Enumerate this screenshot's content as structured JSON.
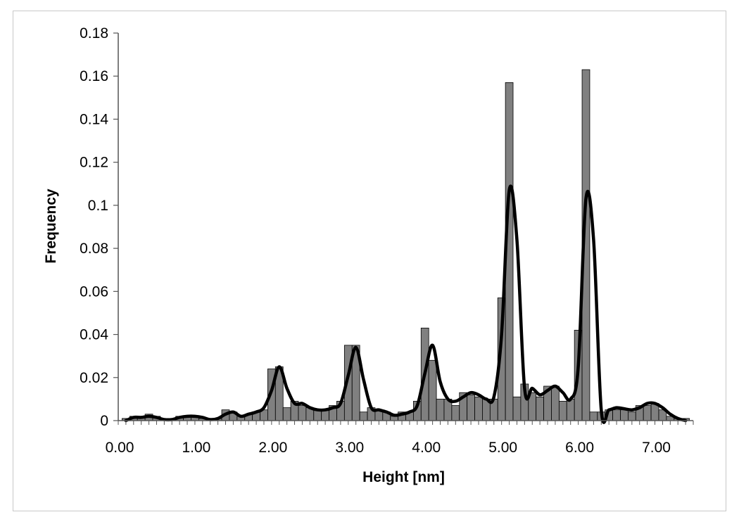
{
  "chart_data": {
    "type": "bar",
    "title": "",
    "xlabel": "Height [nm]",
    "ylabel": "Frequency",
    "xlim": [
      0,
      7.5
    ],
    "ylim": [
      0,
      0.18
    ],
    "grid": false,
    "legend": "none",
    "x_ticks": [
      "0.00",
      "1.00",
      "2.00",
      "3.00",
      "4.00",
      "5.00",
      "6.00",
      "7.00"
    ],
    "x_tick_values": [
      0,
      1,
      2,
      3,
      4,
      5,
      6,
      7
    ],
    "y_ticks": [
      "0",
      "0.02",
      "0.04",
      "0.06",
      "0.08",
      "0.1",
      "0.12",
      "0.14",
      "0.16",
      "0.18"
    ],
    "y_tick_values": [
      0,
      0.02,
      0.04,
      0.06,
      0.08,
      0.1,
      0.12,
      0.14,
      0.16,
      0.18
    ],
    "bin_width": 0.1,
    "bar_color": "#808080",
    "line_color": "#000000",
    "histogram": {
      "x": [
        0.1,
        0.2,
        0.3,
        0.4,
        0.5,
        0.6,
        0.7,
        0.8,
        0.9,
        1.0,
        1.1,
        1.2,
        1.3,
        1.4,
        1.5,
        1.6,
        1.7,
        1.8,
        1.9,
        2.0,
        2.1,
        2.2,
        2.3,
        2.4,
        2.5,
        2.6,
        2.7,
        2.8,
        2.9,
        3.0,
        3.1,
        3.2,
        3.3,
        3.4,
        3.5,
        3.6,
        3.7,
        3.8,
        3.9,
        4.0,
        4.1,
        4.2,
        4.3,
        4.4,
        4.5,
        4.6,
        4.7,
        4.8,
        4.9,
        5.0,
        5.1,
        5.2,
        5.3,
        5.4,
        5.5,
        5.6,
        5.7,
        5.8,
        5.9,
        6.0,
        6.1,
        6.2,
        6.3,
        6.4,
        6.5,
        6.6,
        6.7,
        6.8,
        6.9,
        7.0,
        7.1,
        7.2,
        7.3,
        7.4
      ],
      "values": [
        0.001,
        0.002,
        0.002,
        0.003,
        0.002,
        0.001,
        0.001,
        0.002,
        0.002,
        0.002,
        0.001,
        0.001,
        0.001,
        0.005,
        0.004,
        0.002,
        0.003,
        0.004,
        0.005,
        0.024,
        0.025,
        0.006,
        0.009,
        0.007,
        0.006,
        0.005,
        0.005,
        0.007,
        0.009,
        0.035,
        0.035,
        0.004,
        0.006,
        0.005,
        0.004,
        0.002,
        0.004,
        0.004,
        0.009,
        0.043,
        0.028,
        0.01,
        0.01,
        0.007,
        0.013,
        0.012,
        0.011,
        0.01,
        0.01,
        0.057,
        0.157,
        0.011,
        0.017,
        0.013,
        0.011,
        0.016,
        0.016,
        0.009,
        0.01,
        0.042,
        0.163,
        0.004,
        0.004,
        0.005,
        0.005,
        0.005,
        0.004,
        0.007,
        0.007,
        0.008,
        0.005,
        0.002,
        0.001,
        0.001
      ]
    },
    "curve": {
      "x": [
        0.1,
        0.2,
        0.3,
        0.4,
        0.5,
        0.6,
        0.7,
        0.8,
        0.9,
        1.0,
        1.1,
        1.2,
        1.3,
        1.4,
        1.5,
        1.6,
        1.7,
        1.8,
        1.9,
        2.0,
        2.1,
        2.2,
        2.3,
        2.4,
        2.5,
        2.6,
        2.7,
        2.8,
        2.9,
        3.0,
        3.1,
        3.2,
        3.3,
        3.4,
        3.5,
        3.6,
        3.7,
        3.8,
        3.9,
        4.0,
        4.1,
        4.2,
        4.3,
        4.4,
        4.5,
        4.6,
        4.7,
        4.8,
        4.9,
        5.0,
        5.1,
        5.2,
        5.3,
        5.4,
        5.5,
        5.6,
        5.7,
        5.8,
        5.9,
        6.0,
        6.1,
        6.2,
        6.3,
        6.4,
        6.5,
        6.6,
        6.7,
        6.8,
        6.9,
        7.0,
        7.1,
        7.2,
        7.3,
        7.4
      ],
      "values": [
        0.0,
        0.0015,
        0.0015,
        0.002,
        0.0015,
        0.0005,
        0.0005,
        0.0015,
        0.002,
        0.002,
        0.0015,
        0.0005,
        0.001,
        0.003,
        0.004,
        0.002,
        0.003,
        0.004,
        0.006,
        0.014,
        0.025,
        0.015,
        0.008,
        0.008,
        0.006,
        0.005,
        0.005,
        0.006,
        0.008,
        0.021,
        0.034,
        0.019,
        0.006,
        0.005,
        0.004,
        0.0025,
        0.003,
        0.004,
        0.007,
        0.022,
        0.035,
        0.018,
        0.01,
        0.009,
        0.011,
        0.013,
        0.012,
        0.01,
        0.011,
        0.04,
        0.107,
        0.084,
        0.015,
        0.015,
        0.012,
        0.014,
        0.016,
        0.013,
        0.01,
        0.025,
        0.103,
        0.084,
        0.005,
        0.005,
        0.006,
        0.0055,
        0.005,
        0.006,
        0.008,
        0.008,
        0.006,
        0.003,
        0.001,
        0.0
      ]
    }
  }
}
